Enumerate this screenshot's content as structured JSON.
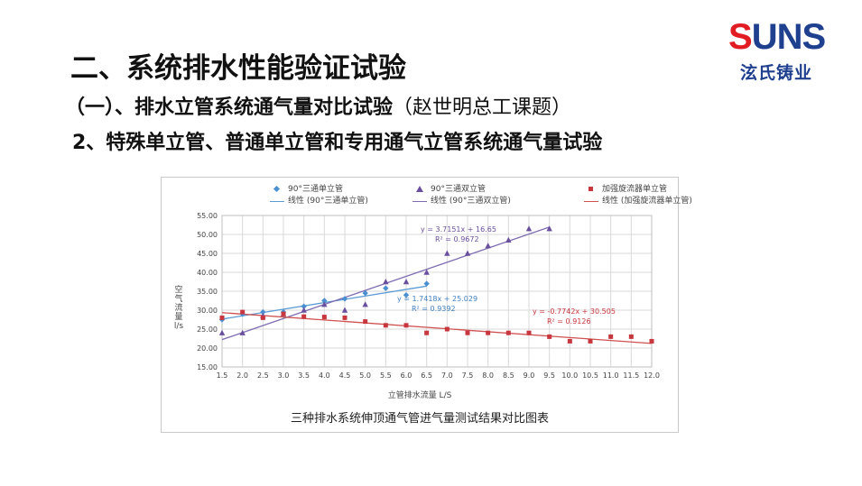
{
  "logo": {
    "mark": "SUNS",
    "mark_first": "S",
    "mark_rest": "UNS",
    "subtitle": "泫氏铸业"
  },
  "heading": {
    "main": "二、系统排水性能验证试验",
    "sub_bold": "（一）、排水立管系统通气量对比试验",
    "sub_normal": "（赵世明总工课题）",
    "third": "2、特殊单立管、普通单立管和专用通气立管系统通气量试验"
  },
  "chart_data": {
    "type": "scatter",
    "caption": "三种排水系统伸顶通气管进气量测试结果对比图表",
    "xlabel": "立管排水流量  L/S",
    "ylabel": "空气流量  l/s",
    "xlim": [
      1.5,
      12.0
    ],
    "ylim": [
      15.0,
      55.0
    ],
    "x_ticks": [
      "1.5",
      "2.0",
      "2.5",
      "3.0",
      "3.5",
      "4.0",
      "4.5",
      "5.0",
      "5.5",
      "6.0",
      "6.5",
      "7.0",
      "7.5",
      "8.0",
      "8.5",
      "9.0",
      "9.5",
      "10.0",
      "10.5",
      "11.0",
      "11.5",
      "12.0"
    ],
    "y_ticks": [
      "15.00",
      "20.00",
      "25.00",
      "30.00",
      "35.00",
      "40.00",
      "45.00",
      "50.00",
      "55.00"
    ],
    "grid": true,
    "legend_position": "top",
    "series": [
      {
        "name": "90°三通单立管",
        "marker": "diamond",
        "color": "#4a8fd0",
        "x": [
          1.5,
          2.0,
          2.5,
          3.0,
          3.5,
          4.0,
          4.5,
          5.0,
          5.5,
          6.0,
          6.5
        ],
        "y": [
          27.5,
          29.0,
          29.5,
          29.5,
          31.0,
          32.5,
          33.0,
          34.5,
          35.8,
          34.0,
          37.0
        ]
      },
      {
        "name": "90°三通双立管",
        "marker": "triangle",
        "color": "#6a4f9f",
        "x": [
          1.5,
          2.0,
          2.5,
          3.0,
          3.5,
          4.0,
          4.5,
          5.0,
          5.5,
          6.0,
          6.5,
          7.0,
          7.5,
          8.0,
          8.5,
          9.0,
          9.5
        ],
        "y": [
          24.0,
          24.0,
          28.5,
          29.0,
          30.0,
          31.5,
          30.0,
          31.5,
          37.5,
          37.5,
          40.0,
          45.0,
          45.0,
          47.0,
          48.5,
          51.5,
          51.5
        ]
      },
      {
        "name": "加强旋流器单立管",
        "marker": "square",
        "color": "#c9373e",
        "x": [
          1.5,
          2.0,
          2.5,
          3.0,
          3.5,
          4.0,
          4.5,
          5.0,
          5.5,
          6.0,
          6.5,
          7.0,
          7.5,
          8.0,
          8.5,
          9.0,
          9.5,
          10.0,
          10.5,
          11.0,
          11.5,
          12.0
        ],
        "y": [
          28.0,
          29.5,
          28.0,
          29.0,
          28.3,
          28.2,
          28.0,
          27.0,
          26.0,
          26.0,
          24.0,
          25.0,
          24.0,
          24.0,
          24.0,
          24.0,
          23.0,
          21.8,
          21.8,
          23.0,
          23.0,
          21.8
        ]
      }
    ],
    "trendlines": [
      {
        "name": "线性 (90°三通单立管)",
        "color": "#5b9bd5",
        "slope": 1.7418,
        "intercept": 25.029,
        "x_range": [
          1.5,
          6.5
        ],
        "equation": "y = 1.7418x + 25.029",
        "r2": "R² = 0.9392"
      },
      {
        "name": "线性 (90°三通双立管)",
        "color": "#7e6bb0",
        "slope": 3.7151,
        "intercept": 16.65,
        "x_range": [
          1.5,
          9.5
        ],
        "equation": "y = 3.7151x + 16.65",
        "r2": "R² = 0.9672"
      },
      {
        "name": "线性 (加强旋流器单立管)",
        "color": "#d05050",
        "slope": -0.7742,
        "intercept": 30.505,
        "x_range": [
          1.5,
          12.0
        ],
        "equation": "y = -0.7742x + 30.505",
        "r2": "R² = 0.9126"
      }
    ]
  }
}
